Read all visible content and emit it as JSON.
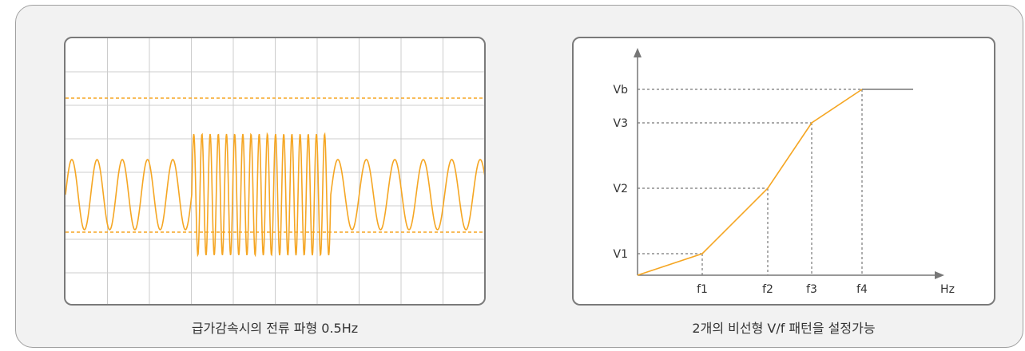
{
  "left_panel": {
    "caption": "급가감속시의 전류 파형 0.5Hz",
    "colors": {
      "wave": "#f5a623",
      "grid": "#cccccc",
      "dashed": "#f5a623"
    },
    "waveform": {
      "description_segments": [
        {
          "cycles": 5,
          "amplitude": "small"
        },
        {
          "cycles": 17,
          "amplitude": "large"
        },
        {
          "cycles": 5,
          "amplitude": "small"
        }
      ]
    }
  },
  "right_panel": {
    "caption": "2개의 비선형 V/f 패턴을 설정가능",
    "colors": {
      "curve": "#f5a623",
      "axis": "#777777",
      "guide": "#777777"
    },
    "y_labels": [
      "Vb",
      "V3",
      "V2",
      "V1"
    ],
    "x_labels": [
      "f1",
      "f2",
      "f3",
      "f4",
      "Hz"
    ]
  },
  "chart_data": {
    "type": "line",
    "series": [
      {
        "x": [
          "0",
          "f1",
          "f2",
          "f3",
          "f4",
          "end"
        ],
        "y": [
          "0",
          "V1",
          "V2",
          "V3",
          "Vb",
          "Vb"
        ]
      }
    ]
  }
}
